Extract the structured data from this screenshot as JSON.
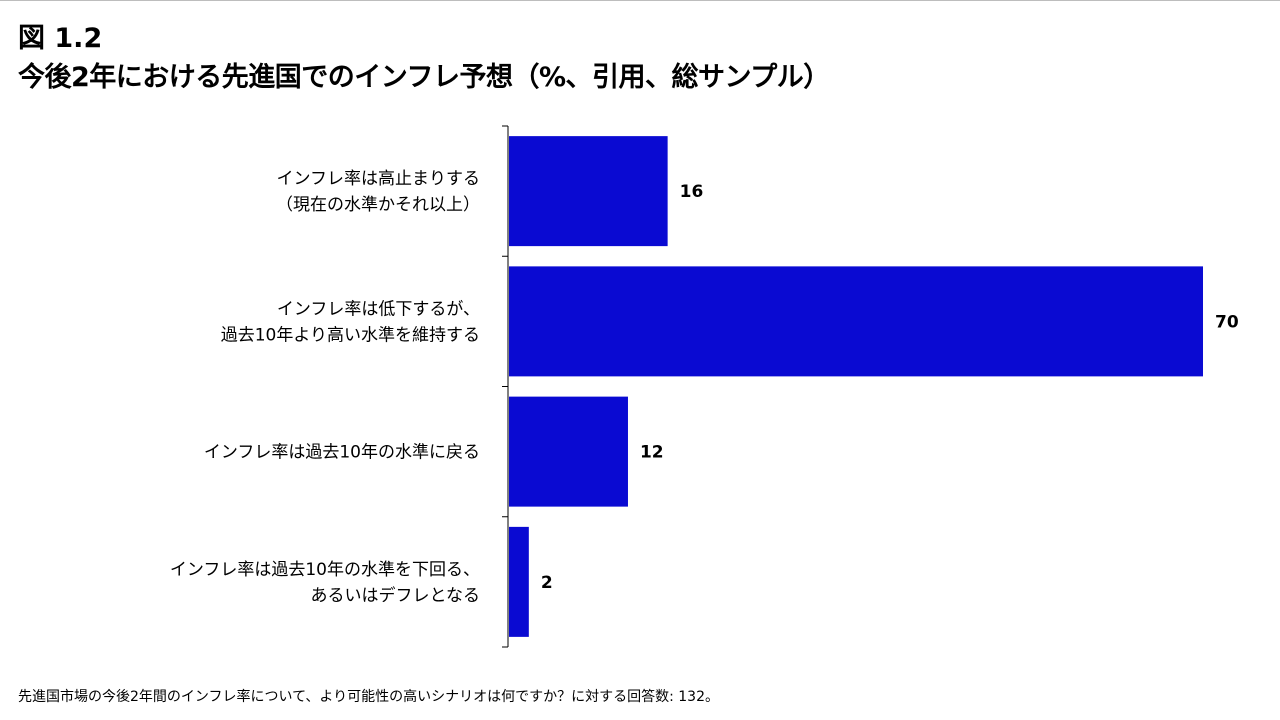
{
  "figure_label": "図 1.2",
  "footnote": "先進国市場の今後2年間のインフレ率について、より可能性の高いシナリオは何ですか？に対する回答数: 132。",
  "chart_data": {
    "type": "bar",
    "orientation": "horizontal",
    "title": "今後2年における先進国でのインフレ予想（%、引用、総サンプル）",
    "categories": [
      [
        "インフレ率は高止まりする",
        "（現在の水準かそれ以上）"
      ],
      [
        "インフレ率は低下するが、",
        "過去10年より高い水準を維持する"
      ],
      [
        "インフレ率は過去10年の水準に戻る"
      ],
      [
        "インフレ率は過去10年の水準を下回る、",
        "あるいはデフレとなる"
      ]
    ],
    "values": [
      16,
      70,
      12,
      2
    ],
    "data_labels": [
      "16",
      "70",
      "12",
      "2"
    ],
    "xlim": [
      0,
      70
    ],
    "grid": false,
    "legend": "none",
    "bar_color": "#0a0ad2"
  }
}
